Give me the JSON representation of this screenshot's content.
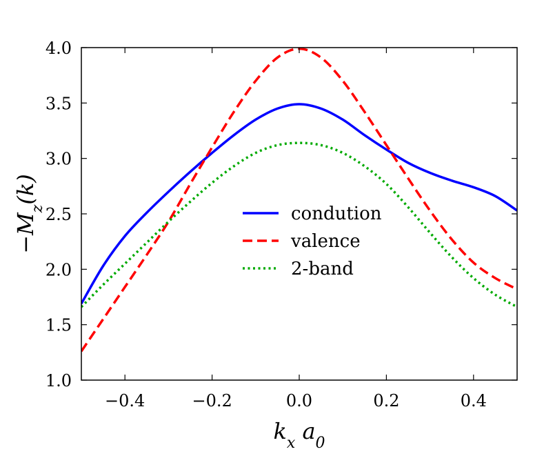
{
  "chart_data": {
    "type": "line",
    "title": "",
    "xlabel": "k_x a_0",
    "ylabel": "−M_z(k)",
    "xlim": [
      -0.5,
      0.5
    ],
    "ylim": [
      1.0,
      4.0
    ],
    "xticks": [
      -0.4,
      -0.2,
      0.0,
      0.2,
      0.4
    ],
    "xtick_labels": [
      "−0.4",
      "−0.2",
      "0.0",
      "0.2",
      "0.4"
    ],
    "yticks": [
      1.0,
      1.5,
      2.0,
      2.5,
      3.0,
      3.5,
      4.0
    ],
    "ytick_labels": [
      "1.0",
      "1.5",
      "2.0",
      "2.5",
      "3.0",
      "3.5",
      "4.0"
    ],
    "legend_position": "center-right",
    "series": [
      {
        "name": "condution",
        "color": "#0000ff",
        "style": "solid",
        "x": [
          -0.5,
          -0.45,
          -0.4,
          -0.35,
          -0.3,
          -0.25,
          -0.2,
          -0.15,
          -0.1,
          -0.05,
          0.0,
          0.05,
          0.1,
          0.15,
          0.2,
          0.25,
          0.3,
          0.35,
          0.4,
          0.45,
          0.5
        ],
        "y": [
          1.69,
          2.03,
          2.3,
          2.51,
          2.7,
          2.88,
          3.05,
          3.21,
          3.35,
          3.45,
          3.49,
          3.45,
          3.35,
          3.21,
          3.08,
          2.96,
          2.87,
          2.8,
          2.74,
          2.66,
          2.53
        ]
      },
      {
        "name": "valence",
        "color": "#ff0000",
        "style": "dashed",
        "x": [
          -0.5,
          -0.45,
          -0.4,
          -0.35,
          -0.3,
          -0.25,
          -0.2,
          -0.15,
          -0.1,
          -0.05,
          0.0,
          0.05,
          0.1,
          0.15,
          0.2,
          0.25,
          0.3,
          0.35,
          0.4,
          0.45,
          0.5
        ],
        "y": [
          1.26,
          1.55,
          1.84,
          2.13,
          2.43,
          2.77,
          3.1,
          3.42,
          3.7,
          3.91,
          3.99,
          3.91,
          3.7,
          3.42,
          3.12,
          2.82,
          2.53,
          2.27,
          2.06,
          1.92,
          1.82
        ]
      },
      {
        "name": "2-band",
        "color": "#00aa00",
        "style": "dotted",
        "x": [
          -0.5,
          -0.45,
          -0.4,
          -0.35,
          -0.3,
          -0.25,
          -0.2,
          -0.15,
          -0.1,
          -0.05,
          0.0,
          0.05,
          0.1,
          0.15,
          0.2,
          0.25,
          0.3,
          0.35,
          0.4,
          0.45,
          0.5
        ],
        "y": [
          1.66,
          1.86,
          2.05,
          2.24,
          2.43,
          2.61,
          2.78,
          2.93,
          3.05,
          3.12,
          3.14,
          3.12,
          3.05,
          2.93,
          2.77,
          2.56,
          2.33,
          2.11,
          1.92,
          1.77,
          1.66
        ]
      }
    ]
  }
}
